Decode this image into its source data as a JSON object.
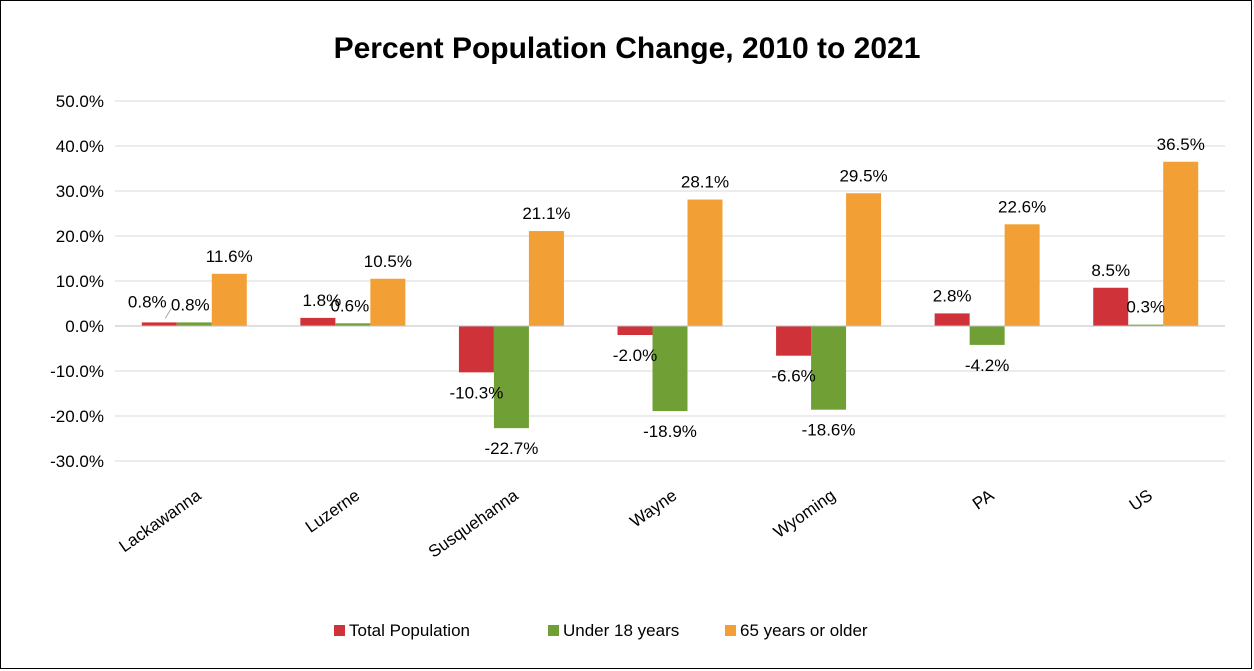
{
  "chart_data": {
    "type": "bar",
    "title": "Percent Population Change, 2010 to 2021",
    "categories": [
      "Lackawanna",
      "Luzerne",
      "Susquehanna",
      "Wayne",
      "Wyoming",
      "PA",
      "US"
    ],
    "series": [
      {
        "name": "Total Population",
        "color": "#d0323a",
        "values": [
          0.8,
          1.8,
          -10.3,
          -2.0,
          -6.6,
          2.8,
          8.5
        ]
      },
      {
        "name": "Under 18 years",
        "color": "#70a035",
        "values": [
          0.8,
          0.6,
          -22.7,
          -18.9,
          -18.6,
          -4.2,
          0.3
        ]
      },
      {
        "name": "65 years or older",
        "color": "#f2a035",
        "values": [
          11.6,
          10.5,
          21.1,
          28.1,
          29.5,
          22.6,
          36.5
        ]
      }
    ],
    "data_labels": [
      [
        "0.8%",
        "1.8%",
        "-10.3%",
        "-2.0%",
        "-6.6%",
        "2.8%",
        "8.5%"
      ],
      [
        "0.8%",
        "0.6%",
        "-22.7%",
        "-18.9%",
        "-18.6%",
        "-4.2%",
        "0.3%"
      ],
      [
        "11.6%",
        "10.5%",
        "21.1%",
        "28.1%",
        "29.5%",
        "22.6%",
        "36.5%"
      ]
    ],
    "y_ticks": [
      50,
      40,
      30,
      20,
      10,
      0,
      -10,
      -20,
      -30
    ],
    "y_tick_labels": [
      "50.0%",
      "40.0%",
      "30.0%",
      "20.0%",
      "10.0%",
      "0.0%",
      "-10.0%",
      "-20.0%",
      "-30.0%"
    ],
    "ylim": [
      -30,
      50
    ],
    "grid": true,
    "legend_position": "bottom"
  }
}
